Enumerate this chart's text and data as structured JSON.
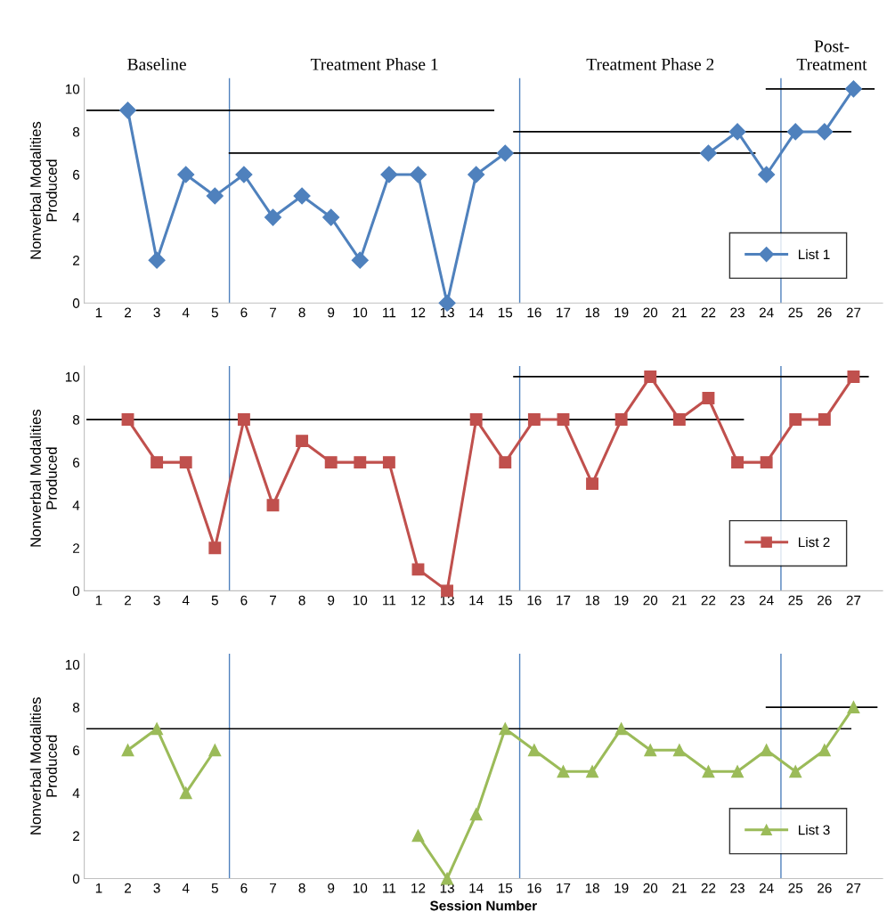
{
  "chart_data": [
    {
      "type": "line",
      "ylabel": "Nonverbal Modalities\nProduced",
      "x": [
        2,
        3,
        4,
        5,
        6,
        7,
        8,
        9,
        10,
        11,
        12,
        13,
        14,
        15,
        16,
        17,
        18,
        19,
        20,
        21,
        22,
        23,
        24,
        25,
        26,
        27
      ],
      "xlim": [
        0.5,
        28
      ],
      "xticks": [
        1,
        2,
        3,
        4,
        5,
        6,
        7,
        8,
        9,
        10,
        11,
        12,
        13,
        14,
        15,
        16,
        17,
        18,
        19,
        20,
        21,
        22,
        23,
        24,
        25,
        26,
        27
      ],
      "ylim": [
        0,
        10.5
      ],
      "yticks": [
        0,
        2,
        4,
        6,
        8,
        10
      ],
      "grid": false,
      "legend": "lower right",
      "annotations": [
        "Baseline",
        "Treatment Phase 1",
        "Treatment Phase 2",
        "Post-\nTreatment"
      ],
      "ref_lines": [
        {
          "axis": "x",
          "value": 5.5,
          "color": "#4f81bd"
        },
        {
          "axis": "x",
          "value": 15.5,
          "color": "#4f81bd"
        },
        {
          "axis": "x",
          "value": 24.5,
          "color": "#4f81bd"
        }
      ],
      "series": [
        {
          "name": "List 1",
          "color": "#4f81bd",
          "marker": "diamond",
          "values": [
            9,
            2,
            6,
            5,
            6,
            4,
            5,
            4,
            2,
            6,
            6,
            0,
            6,
            7,
            null,
            null,
            null,
            null,
            null,
            null,
            7,
            8,
            6,
            8,
            8,
            10
          ]
        },
        {
          "color": "#000000",
          "marker": "none",
          "x": [
            0.6,
            14.6
          ],
          "values": [
            9,
            9
          ]
        },
        {
          "color": "#000000",
          "marker": "none",
          "x": [
            5.5,
            23.6
          ],
          "values": [
            7,
            7
          ]
        },
        {
          "color": "#000000",
          "marker": "none",
          "x": [
            15.3,
            26.9
          ],
          "values": [
            8,
            8
          ]
        },
        {
          "color": "#000000",
          "marker": "none",
          "x": [
            24,
            27.7
          ],
          "values": [
            10,
            10
          ]
        }
      ]
    },
    {
      "type": "line",
      "ylabel": "Nonverbal Modalities\nProduced",
      "x": [
        2,
        3,
        4,
        5,
        6,
        7,
        8,
        9,
        10,
        11,
        12,
        13,
        14,
        15,
        16,
        17,
        18,
        19,
        20,
        21,
        22,
        23,
        24,
        25,
        26,
        27
      ],
      "xlim": [
        0.5,
        28
      ],
      "xticks": [
        1,
        2,
        3,
        4,
        5,
        6,
        7,
        8,
        9,
        10,
        11,
        12,
        13,
        14,
        15,
        16,
        17,
        18,
        19,
        20,
        21,
        22,
        23,
        24,
        25,
        26,
        27
      ],
      "ylim": [
        0,
        10.5
      ],
      "yticks": [
        0,
        2,
        4,
        6,
        8,
        10
      ],
      "grid": false,
      "legend": "lower right",
      "ref_lines": [
        {
          "axis": "x",
          "value": 5.5,
          "color": "#4f81bd"
        },
        {
          "axis": "x",
          "value": 15.5,
          "color": "#4f81bd"
        },
        {
          "axis": "x",
          "value": 24.5,
          "color": "#4f81bd"
        }
      ],
      "series": [
        {
          "name": "List 2",
          "color": "#c0504d",
          "marker": "square",
          "values": [
            8,
            6,
            6,
            2,
            8,
            4,
            7,
            6,
            6,
            6,
            1,
            0,
            8,
            6,
            8,
            8,
            5,
            8,
            10,
            8,
            9,
            6,
            6,
            8,
            8,
            10
          ]
        },
        {
          "color": "#000000",
          "marker": "none",
          "x": [
            0.6,
            23.2
          ],
          "values": [
            8,
            8
          ]
        },
        {
          "color": "#000000",
          "marker": "none",
          "x": [
            15.3,
            27.5
          ],
          "values": [
            10,
            10
          ]
        }
      ]
    },
    {
      "type": "line",
      "ylabel": "Nonverbal Modalities\nProduced",
      "xlabel": "Session Number",
      "x": [
        2,
        3,
        4,
        5,
        6,
        7,
        8,
        9,
        10,
        11,
        12,
        13,
        14,
        15,
        16,
        17,
        18,
        19,
        20,
        21,
        22,
        23,
        24,
        25,
        26,
        27
      ],
      "xlim": [
        0.5,
        28
      ],
      "xticks": [
        1,
        2,
        3,
        4,
        5,
        6,
        7,
        8,
        9,
        10,
        11,
        12,
        13,
        14,
        15,
        16,
        17,
        18,
        19,
        20,
        21,
        22,
        23,
        24,
        25,
        26,
        27
      ],
      "ylim": [
        0,
        10.5
      ],
      "yticks": [
        0,
        2,
        4,
        6,
        8,
        10
      ],
      "grid": false,
      "legend": "lower right",
      "ref_lines": [
        {
          "axis": "x",
          "value": 5.5,
          "color": "#4f81bd"
        },
        {
          "axis": "x",
          "value": 15.5,
          "color": "#4f81bd"
        },
        {
          "axis": "x",
          "value": 24.5,
          "color": "#4f81bd"
        }
      ],
      "series": [
        {
          "name": "List 3",
          "color": "#9bbb59",
          "marker": "triangle",
          "values": [
            6,
            7,
            4,
            6,
            null,
            null,
            null,
            null,
            null,
            null,
            2,
            0,
            3,
            7,
            6,
            5,
            5,
            7,
            6,
            6,
            5,
            5,
            6,
            5,
            6,
            8
          ]
        },
        {
          "color": "#000000",
          "marker": "none",
          "x": [
            0.6,
            26.9
          ],
          "values": [
            7,
            7
          ]
        },
        {
          "color": "#000000",
          "marker": "none",
          "x": [
            24,
            27.8
          ],
          "values": [
            8,
            8
          ]
        }
      ]
    }
  ]
}
